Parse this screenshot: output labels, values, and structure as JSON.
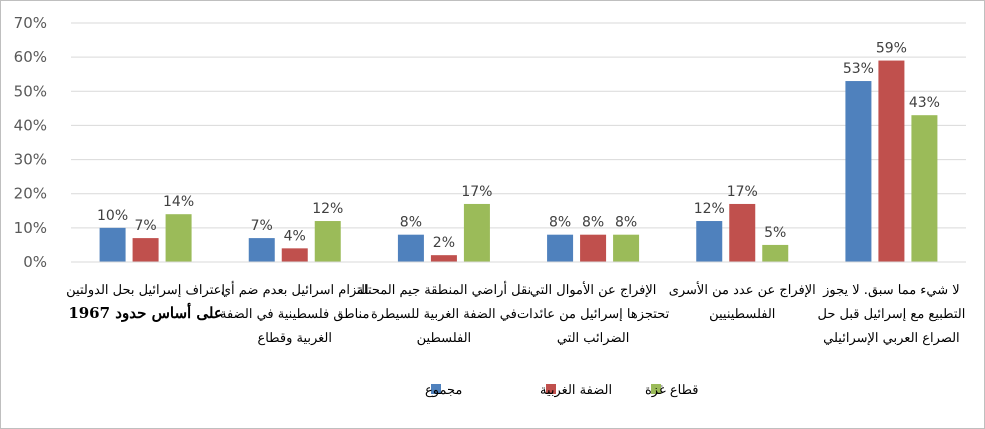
{
  "chart_data": {
    "type": "bar",
    "categories": [
      [
        "اعتراف إسرائيل بحل الدولتين",
        "على أساس حدود 1967"
      ],
      [
        "التزام اسرائيل بعدم ضم أي",
        "مناطق فلسطينية في الضفة",
        "الغربية وقطاع"
      ],
      [
        "نقل أراضي المنطقة جيم المحتلة",
        "في الضفة الغربية للسيطرة",
        "الفلسطين"
      ],
      [
        "الإفراج عن الأموال التي",
        "تحتجزها إسرائيل من عائدات",
        "الضرائب التي"
      ],
      [
        "الإفراج عن عدد من الأسرى",
        "الفلسطينيين"
      ],
      [
        "لا شيء مما سبق. لا يجوز",
        "التطبيع مع إسرائيل قبل حل",
        "الصراع العربي الإسرائيلي"
      ]
    ],
    "series": [
      {
        "name": "مجموع",
        "color": "#4f81bd",
        "values": [
          10,
          7,
          8,
          8,
          12,
          53
        ]
      },
      {
        "name": "الضفة الغربية",
        "color": "#c0504d",
        "values": [
          7,
          4,
          2,
          8,
          17,
          59
        ]
      },
      {
        "name": "قطاع غزة",
        "color": "#9bbb59",
        "values": [
          14,
          12,
          17,
          8,
          5,
          43
        ]
      }
    ],
    "ylim": [
      0,
      70
    ],
    "yticks": [
      0,
      10,
      20,
      30,
      40,
      50,
      60,
      70
    ],
    "ytick_labels": [
      "0%",
      "10%",
      "20%",
      "30%",
      "40%",
      "50%",
      "60%",
      "70%"
    ],
    "value_suffix": "%",
    "grid": true,
    "legend_position": "bottom-center",
    "title": "",
    "xlabel": "",
    "ylabel": ""
  }
}
